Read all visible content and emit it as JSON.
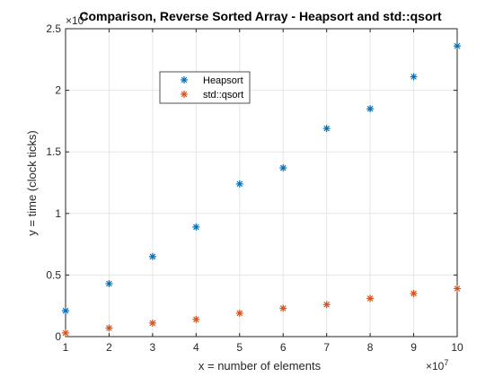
{
  "chart_data": {
    "type": "scatter",
    "title": "Comparison, Reverse Sorted Array - Heapsort and std::qsort",
    "xlabel": "x = number of elements",
    "ylabel": "y = time (clock ticks)",
    "x_multiplier_label": "×10",
    "x_multiplier_exp": "7",
    "y_multiplier_label": "×10",
    "y_multiplier_exp": "7",
    "xlim": [
      1,
      10
    ],
    "ylim": [
      0,
      2.5
    ],
    "xticks": [
      1,
      2,
      3,
      4,
      5,
      6,
      7,
      8,
      9,
      10
    ],
    "xtick_labels": [
      "1",
      "2",
      "3",
      "4",
      "5",
      "6",
      "7",
      "8",
      "9",
      "10"
    ],
    "yticks": [
      0,
      0.5,
      1,
      1.5,
      2,
      2.5
    ],
    "ytick_labels": [
      "0",
      "0.5",
      "1",
      "1.5",
      "2",
      "2.5"
    ],
    "grid": true,
    "legend_position": "upper-left-center",
    "marker": "*",
    "x": [
      1,
      2,
      3,
      4,
      5,
      6,
      7,
      8,
      9,
      10
    ],
    "series": [
      {
        "name": "Heapsort",
        "color": "#0072BD",
        "values": [
          0.21,
          0.43,
          0.65,
          0.89,
          1.24,
          1.37,
          1.69,
          1.85,
          2.11,
          2.36
        ]
      },
      {
        "name": "std::qsort",
        "color": "#D95319",
        "values": [
          0.03,
          0.07,
          0.11,
          0.14,
          0.19,
          0.23,
          0.26,
          0.31,
          0.35,
          0.39
        ]
      }
    ]
  }
}
